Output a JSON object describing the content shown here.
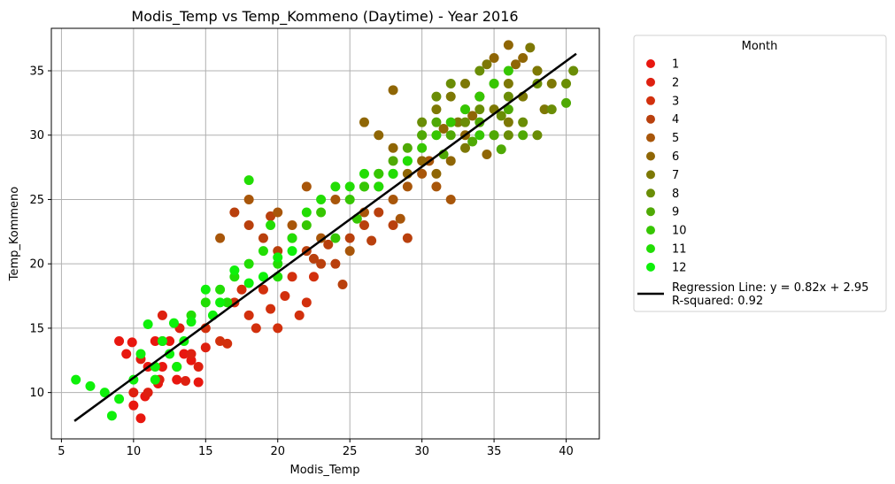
{
  "chart_data": {
    "type": "scatter",
    "title": "Modis_Temp vs Temp_Kommeno (Daytime) - Year 2016",
    "xlabel": "Modis_Temp",
    "ylabel": "Temp_Kommeno",
    "xlim": [
      4.3,
      42.3
    ],
    "ylim": [
      6.4,
      38.3
    ],
    "xticks": [
      5,
      10,
      15,
      20,
      25,
      30,
      35,
      40
    ],
    "yticks": [
      10,
      15,
      20,
      25,
      30,
      35
    ],
    "grid": true,
    "legend": {
      "title": "Month",
      "placement": "outside-right",
      "entries": [
        "1",
        "2",
        "3",
        "4",
        "5",
        "6",
        "7",
        "8",
        "9",
        "10",
        "11",
        "12"
      ],
      "regression_label_line1": "Regression Line: y = 0.82x + 2.95",
      "regression_label_line2": "R-squared: 0.92"
    },
    "regression": {
      "slope": 0.82,
      "intercept": 2.95,
      "x_range": [
        5.9,
        40.7
      ],
      "r_squared": 0.92,
      "color": "#000000"
    },
    "series": [
      {
        "name": "1",
        "color": "#e8170f",
        "points": [
          [
            9.5,
            13
          ],
          [
            9,
            14
          ],
          [
            10.5,
            8
          ],
          [
            11,
            12
          ],
          [
            11.5,
            14
          ],
          [
            10,
            9
          ],
          [
            12,
            12
          ],
          [
            13,
            11
          ],
          [
            14.5,
            10.8
          ],
          [
            13.5,
            13
          ],
          [
            12.5,
            14
          ],
          [
            10.8,
            9.7
          ],
          [
            9.9,
            13.9
          ],
          [
            14,
            12.5
          ],
          [
            11.7,
            10.7
          ]
        ]
      },
      {
        "name": "2",
        "color": "#de2010",
        "points": [
          [
            10,
            10
          ],
          [
            11,
            10
          ],
          [
            12,
            14
          ],
          [
            13,
            12
          ],
          [
            14,
            13
          ],
          [
            12,
            16
          ],
          [
            11.8,
            11
          ],
          [
            13.2,
            15
          ],
          [
            14.5,
            12
          ],
          [
            15,
            13.5
          ],
          [
            10.5,
            12.6
          ],
          [
            13.6,
            10.9
          ]
        ]
      },
      {
        "name": "3",
        "color": "#d2300d",
        "points": [
          [
            15,
            15
          ],
          [
            16,
            14
          ],
          [
            17,
            17
          ],
          [
            18,
            16
          ],
          [
            19,
            18
          ],
          [
            20,
            15
          ],
          [
            21,
            19
          ],
          [
            22,
            17
          ],
          [
            16.5,
            13.8
          ],
          [
            19.5,
            16.5
          ],
          [
            18.5,
            15
          ],
          [
            20.5,
            17.5
          ],
          [
            17.5,
            18
          ],
          [
            21.5,
            16
          ],
          [
            22.5,
            19
          ]
        ]
      },
      {
        "name": "4",
        "color": "#b9400d",
        "points": [
          [
            17,
            24
          ],
          [
            18,
            23
          ],
          [
            19,
            22
          ],
          [
            20,
            21
          ],
          [
            21,
            22
          ],
          [
            22,
            21
          ],
          [
            23,
            20
          ],
          [
            24,
            20
          ],
          [
            25,
            22
          ],
          [
            26,
            23
          ],
          [
            27,
            24
          ],
          [
            28,
            23
          ],
          [
            29,
            22
          ],
          [
            24.5,
            18.4
          ],
          [
            23.5,
            21.5
          ],
          [
            26.5,
            21.8
          ],
          [
            22.5,
            20.4
          ],
          [
            19.5,
            23.7
          ]
        ]
      },
      {
        "name": "5",
        "color": "#a8560a",
        "points": [
          [
            16,
            22
          ],
          [
            18,
            25
          ],
          [
            20,
            24
          ],
          [
            22,
            26
          ],
          [
            24,
            25
          ],
          [
            26,
            24
          ],
          [
            27,
            26
          ],
          [
            28,
            25
          ],
          [
            29,
            26
          ],
          [
            30,
            27
          ],
          [
            31,
            26
          ],
          [
            32,
            25
          ],
          [
            25,
            21
          ],
          [
            21,
            23
          ],
          [
            23,
            22
          ],
          [
            28.5,
            23.5
          ],
          [
            30.5,
            28
          ]
        ]
      },
      {
        "name": "6",
        "color": "#8f6605",
        "points": [
          [
            27,
            30
          ],
          [
            28,
            29
          ],
          [
            29,
            27
          ],
          [
            30,
            28
          ],
          [
            31,
            27
          ],
          [
            32,
            28
          ],
          [
            33,
            30
          ],
          [
            34,
            33
          ],
          [
            35,
            36
          ],
          [
            36,
            37
          ],
          [
            37,
            36
          ],
          [
            38,
            35
          ],
          [
            33.5,
            31.5
          ],
          [
            34.5,
            28.5
          ],
          [
            36.5,
            35.5
          ],
          [
            31.5,
            30.5
          ],
          [
            26,
            31
          ],
          [
            28,
            33.5
          ]
        ]
      },
      {
        "name": "7",
        "color": "#7d7805",
        "points": [
          [
            30,
            30
          ],
          [
            31,
            32
          ],
          [
            32,
            33
          ],
          [
            33,
            34
          ],
          [
            34,
            33
          ],
          [
            35,
            32
          ],
          [
            36,
            34
          ],
          [
            37,
            33
          ],
          [
            38,
            35
          ],
          [
            39,
            34
          ],
          [
            33,
            29
          ],
          [
            35,
            30
          ],
          [
            36,
            31
          ],
          [
            37.5,
            36.8
          ],
          [
            34.5,
            35.5
          ],
          [
            32.5,
            31
          ],
          [
            38.5,
            32
          ]
        ]
      },
      {
        "name": "8",
        "color": "#6a8d06",
        "points": [
          [
            30,
            31
          ],
          [
            31,
            33
          ],
          [
            32,
            34
          ],
          [
            33,
            31
          ],
          [
            34,
            32
          ],
          [
            35,
            34
          ],
          [
            36,
            33
          ],
          [
            37,
            31
          ],
          [
            38,
            34
          ],
          [
            39,
            32
          ],
          [
            40,
            34
          ],
          [
            40.5,
            35
          ],
          [
            34,
            35
          ],
          [
            36,
            30
          ],
          [
            38,
            30
          ],
          [
            35.5,
            31.5
          ]
        ]
      },
      {
        "name": "9",
        "color": "#4fa905",
        "points": [
          [
            26,
            26
          ],
          [
            27,
            27
          ],
          [
            28,
            28
          ],
          [
            29,
            29
          ],
          [
            30,
            30
          ],
          [
            31,
            31
          ],
          [
            32,
            30
          ],
          [
            33,
            32
          ],
          [
            34,
            31
          ],
          [
            35,
            30
          ],
          [
            36,
            32
          ],
          [
            37,
            30
          ],
          [
            40,
            32.5
          ],
          [
            33.5,
            29.5
          ],
          [
            31.5,
            28.5
          ],
          [
            35.5,
            28.9
          ]
        ]
      },
      {
        "name": "10",
        "color": "#36c602",
        "points": [
          [
            22,
            23
          ],
          [
            23,
            24
          ],
          [
            24,
            22
          ],
          [
            25,
            25
          ],
          [
            26,
            26
          ],
          [
            27,
            27
          ],
          [
            28,
            27
          ],
          [
            29,
            28
          ],
          [
            30,
            29
          ],
          [
            31,
            30
          ],
          [
            32,
            31
          ],
          [
            33,
            32
          ],
          [
            34,
            33
          ],
          [
            35,
            34
          ],
          [
            36,
            35
          ],
          [
            34,
            30
          ],
          [
            25.5,
            23.5
          ]
        ]
      },
      {
        "name": "11",
        "color": "#22dd04",
        "points": [
          [
            14,
            16
          ],
          [
            15,
            17
          ],
          [
            16,
            18
          ],
          [
            17,
            19
          ],
          [
            18,
            20
          ],
          [
            19,
            21
          ],
          [
            20,
            20
          ],
          [
            21,
            22
          ],
          [
            22,
            24
          ],
          [
            23,
            25
          ],
          [
            24,
            26
          ],
          [
            25,
            26
          ],
          [
            26,
            27
          ],
          [
            27,
            26
          ],
          [
            28,
            27
          ],
          [
            29,
            28
          ],
          [
            18,
            26.5
          ],
          [
            19.5,
            23
          ],
          [
            20,
            19
          ],
          [
            16.5,
            17
          ]
        ]
      },
      {
        "name": "12",
        "color": "#0ef00a",
        "points": [
          [
            6,
            11
          ],
          [
            7,
            10.5
          ],
          [
            8,
            10
          ],
          [
            8.5,
            8.2
          ],
          [
            9,
            9.5
          ],
          [
            10,
            11
          ],
          [
            10.5,
            13
          ],
          [
            11,
            15.3
          ],
          [
            11.5,
            12
          ],
          [
            12,
            14
          ],
          [
            12.5,
            13
          ],
          [
            13,
            12
          ],
          [
            13.5,
            14
          ],
          [
            14,
            15.5
          ],
          [
            15,
            18
          ],
          [
            16,
            17
          ],
          [
            17,
            19.5
          ],
          [
            18,
            18.5
          ],
          [
            19,
            19
          ],
          [
            20,
            20.5
          ],
          [
            21,
            21
          ],
          [
            11.5,
            11
          ],
          [
            12.8,
            15.4
          ],
          [
            15.5,
            16
          ]
        ]
      }
    ]
  }
}
